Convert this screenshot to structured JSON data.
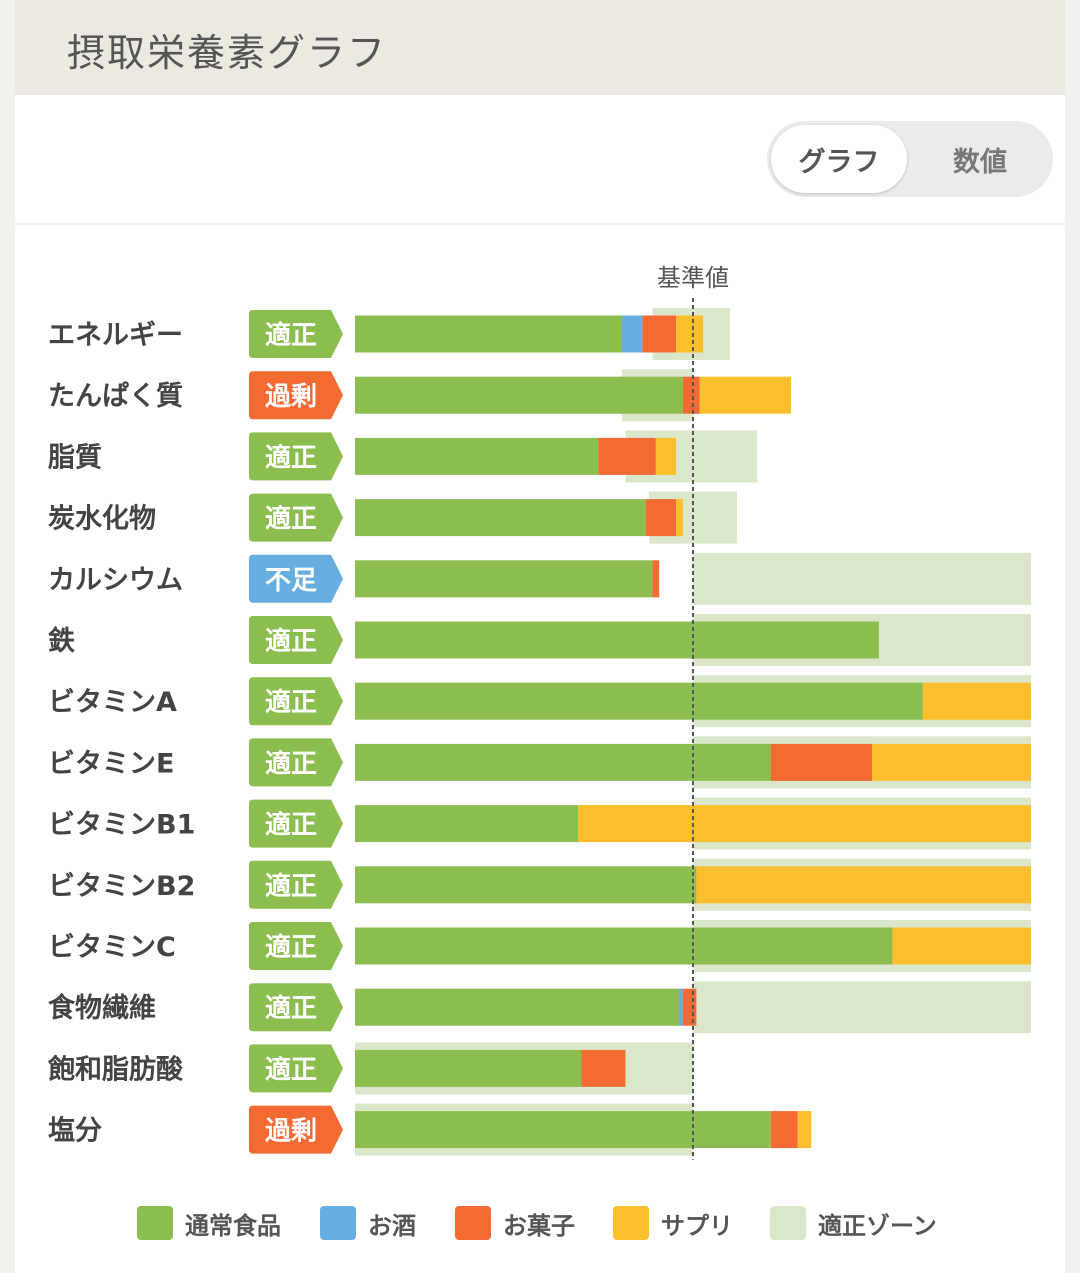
{
  "page": {
    "title": "摂取栄養素グラフ",
    "toggle": {
      "graph_label": "グラフ",
      "number_label": "数値",
      "selected": "グラフ"
    }
  },
  "chart_data": {
    "type": "bar",
    "orientation": "horizontal",
    "stacked": true,
    "reference_label": "基準値",
    "reference_value": 1.0,
    "xlim": [
      0,
      2.0
    ],
    "grid": false,
    "legend_position": "bottom",
    "status_colors": {
      "適正": "#8cbd4f",
      "過剰": "#f46a33",
      "不足": "#66aee0"
    },
    "series": [
      {
        "name": "通常食品",
        "color": "#8cbd4f"
      },
      {
        "name": "お酒",
        "color": "#66aee0"
      },
      {
        "name": "お菓子",
        "color": "#f46a33"
      },
      {
        "name": "サプリ",
        "color": "#fbbe2c"
      }
    ],
    "zone": {
      "name": "適正ゾーン",
      "color": "#dbe7ca"
    },
    "rows": [
      {
        "nutrient": "エネルギー",
        "status": "適正",
        "values": [
          0.79,
          0.06,
          0.1,
          0.08
        ],
        "zone": [
          0.88,
          1.11
        ]
      },
      {
        "nutrient": "たんぱく質",
        "status": "過剰",
        "values": [
          0.97,
          0.0,
          0.05,
          0.27
        ],
        "zone": [
          0.79,
          1.0
        ]
      },
      {
        "nutrient": "脂質",
        "status": "適正",
        "values": [
          0.72,
          0.0,
          0.17,
          0.06
        ],
        "zone": [
          0.8,
          1.19
        ]
      },
      {
        "nutrient": "炭水化物",
        "status": "適正",
        "values": [
          0.86,
          0.0,
          0.09,
          0.02
        ],
        "zone": [
          0.87,
          1.13
        ]
      },
      {
        "nutrient": "カルシウム",
        "status": "不足",
        "values": [
          0.88,
          0.0,
          0.02,
          0.0
        ],
        "zone": [
          1.0,
          2.0
        ]
      },
      {
        "nutrient": "鉄",
        "status": "適正",
        "values": [
          1.55,
          0.0,
          0.0,
          0.0
        ],
        "zone": [
          1.0,
          2.0
        ]
      },
      {
        "nutrient": "ビタミンA",
        "status": "適正",
        "values": [
          1.68,
          0.0,
          0.0,
          0.32
        ],
        "zone": [
          1.0,
          2.0
        ]
      },
      {
        "nutrient": "ビタミンE",
        "status": "適正",
        "values": [
          1.23,
          0.0,
          0.3,
          0.47
        ],
        "zone": [
          1.0,
          2.0
        ]
      },
      {
        "nutrient": "ビタミンB1",
        "status": "適正",
        "values": [
          0.66,
          0.0,
          0.0,
          1.34
        ],
        "zone": [
          1.0,
          2.0
        ]
      },
      {
        "nutrient": "ビタミンB2",
        "status": "適正",
        "values": [
          1.01,
          0.0,
          0.0,
          0.99
        ],
        "zone": [
          1.0,
          2.0
        ]
      },
      {
        "nutrient": "ビタミンC",
        "status": "適正",
        "values": [
          1.59,
          0.0,
          0.0,
          0.41
        ],
        "zone": [
          1.0,
          2.0
        ]
      },
      {
        "nutrient": "食物繊維",
        "status": "適正",
        "values": [
          0.96,
          0.01,
          0.04,
          0.0
        ],
        "zone": [
          1.0,
          2.0
        ]
      },
      {
        "nutrient": "飽和脂肪酸",
        "status": "適正",
        "values": [
          0.67,
          0.0,
          0.13,
          0.0
        ],
        "zone": [
          0.0,
          1.0
        ]
      },
      {
        "nutrient": "塩分",
        "status": "過剰",
        "values": [
          1.23,
          0.0,
          0.08,
          0.04
        ],
        "zone": [
          0.0,
          1.0
        ]
      }
    ]
  }
}
